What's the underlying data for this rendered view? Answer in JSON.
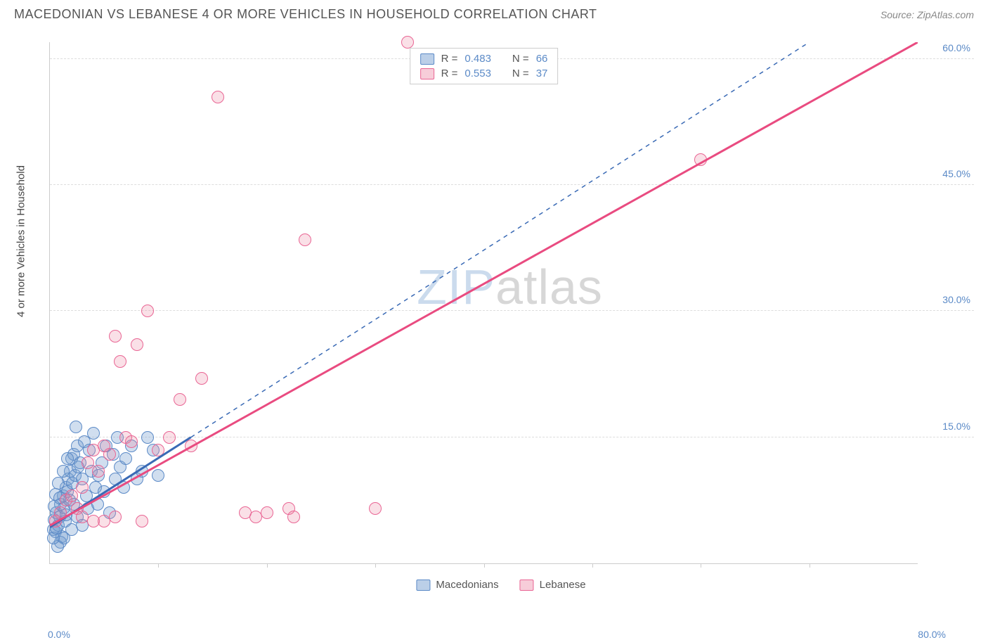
{
  "title": "MACEDONIAN VS LEBANESE 4 OR MORE VEHICLES IN HOUSEHOLD CORRELATION CHART",
  "source": "Source: ZipAtlas.com",
  "watermark": {
    "z": "ZIP",
    "rest": "atlas"
  },
  "chart": {
    "type": "scatter",
    "y_axis_title": "4 or more Vehicles in Household",
    "xlim": [
      0,
      80
    ],
    "ylim": [
      0,
      62
    ],
    "x_ticks": {
      "left_label": "0.0%",
      "left_pos": 0,
      "right_label": "80.0%",
      "right_pos": 80,
      "minor": [
        10,
        20,
        30,
        40,
        50,
        60,
        70
      ]
    },
    "y_ticks": [
      {
        "value": 15,
        "label": "15.0%"
      },
      {
        "value": 30,
        "label": "30.0%"
      },
      {
        "value": 45,
        "label": "45.0%"
      },
      {
        "value": 60,
        "label": "60.0%"
      }
    ],
    "grid_color": "#dddddd",
    "background_color": "#ffffff",
    "marker_radius": 9,
    "series": [
      {
        "name": "Macedonians",
        "color_fill": "rgba(120,160,210,0.35)",
        "color_stroke": "#5b8ac7",
        "R": "0.483",
        "N": "66",
        "trend": {
          "x1": 0,
          "y1": 4.3,
          "x2": 13,
          "y2": 15,
          "dash_ext_x2": 70,
          "dash_ext_y2": 62,
          "color": "#3a6ab5"
        },
        "points": [
          [
            0.3,
            4.0
          ],
          [
            0.4,
            5.2
          ],
          [
            0.5,
            3.8
          ],
          [
            0.6,
            6.0
          ],
          [
            0.8,
            4.5
          ],
          [
            0.9,
            5.5
          ],
          [
            1.0,
            7.0
          ],
          [
            1.1,
            3.2
          ],
          [
            1.2,
            8.0
          ],
          [
            1.3,
            6.6
          ],
          [
            1.4,
            5.0
          ],
          [
            1.5,
            9.0
          ],
          [
            1.6,
            8.5
          ],
          [
            1.7,
            10.0
          ],
          [
            1.8,
            7.5
          ],
          [
            1.9,
            11.0
          ],
          [
            2.0,
            12.5
          ],
          [
            2.1,
            9.5
          ],
          [
            2.2,
            13.0
          ],
          [
            2.3,
            10.5
          ],
          [
            2.4,
            16.2
          ],
          [
            2.5,
            14.0
          ],
          [
            2.6,
            11.5
          ],
          [
            2.8,
            12.0
          ],
          [
            3.0,
            10.0
          ],
          [
            3.2,
            14.5
          ],
          [
            3.4,
            8.0
          ],
          [
            3.5,
            6.5
          ],
          [
            3.6,
            13.5
          ],
          [
            3.8,
            11.0
          ],
          [
            4.0,
            15.5
          ],
          [
            4.2,
            9.0
          ],
          [
            4.4,
            7.0
          ],
          [
            4.5,
            10.5
          ],
          [
            4.8,
            12.0
          ],
          [
            5.0,
            8.5
          ],
          [
            5.2,
            14.0
          ],
          [
            5.5,
            6.0
          ],
          [
            5.8,
            13.0
          ],
          [
            6.0,
            10.0
          ],
          [
            6.2,
            15.0
          ],
          [
            6.5,
            11.5
          ],
          [
            6.8,
            9.0
          ],
          [
            7.0,
            12.5
          ],
          [
            7.5,
            14.0
          ],
          [
            8.0,
            10.0
          ],
          [
            8.5,
            11.0
          ],
          [
            9.0,
            15.0
          ],
          [
            9.5,
            13.5
          ],
          [
            10.0,
            10.5
          ],
          [
            1.0,
            2.5
          ],
          [
            1.3,
            3.0
          ],
          [
            0.7,
            2.0
          ],
          [
            2.0,
            4.0
          ],
          [
            2.5,
            5.5
          ],
          [
            3.0,
            4.5
          ],
          [
            0.5,
            8.2
          ],
          [
            0.8,
            9.5
          ],
          [
            1.2,
            11.0
          ],
          [
            1.6,
            12.5
          ],
          [
            0.4,
            6.8
          ],
          [
            0.9,
            7.8
          ],
          [
            1.5,
            5.8
          ],
          [
            2.2,
            7.0
          ],
          [
            0.3,
            3.0
          ],
          [
            0.6,
            4.2
          ]
        ]
      },
      {
        "name": "Lebanese",
        "color_fill": "rgba(235,130,160,0.25)",
        "color_stroke": "#e96594",
        "R": "0.553",
        "N": "37",
        "trend": {
          "x1": 0,
          "y1": 4.5,
          "x2": 80,
          "y2": 62,
          "color": "#e94b80"
        },
        "points": [
          [
            0.5,
            5.0
          ],
          [
            1.0,
            6.0
          ],
          [
            1.5,
            7.5
          ],
          [
            2.0,
            8.0
          ],
          [
            2.5,
            6.5
          ],
          [
            3.0,
            9.0
          ],
          [
            3.5,
            12.0
          ],
          [
            4.0,
            13.5
          ],
          [
            4.5,
            11.0
          ],
          [
            5.0,
            14.0
          ],
          [
            5.5,
            13.0
          ],
          [
            6.0,
            27.0
          ],
          [
            6.5,
            24.0
          ],
          [
            7.0,
            15.0
          ],
          [
            7.5,
            14.5
          ],
          [
            8.0,
            26.0
          ],
          [
            9.0,
            30.0
          ],
          [
            10.0,
            13.5
          ],
          [
            11.0,
            15.0
          ],
          [
            12.0,
            19.5
          ],
          [
            13.0,
            14.0
          ],
          [
            14.0,
            22.0
          ],
          [
            15.5,
            55.5
          ],
          [
            18.0,
            6.0
          ],
          [
            19.0,
            5.5
          ],
          [
            20.0,
            6.0
          ],
          [
            22.0,
            6.5
          ],
          [
            22.5,
            5.5
          ],
          [
            23.5,
            38.5
          ],
          [
            30.0,
            6.5
          ],
          [
            33.0,
            62.0
          ],
          [
            60.0,
            48.0
          ],
          [
            5.0,
            5.0
          ],
          [
            6.0,
            5.5
          ],
          [
            8.5,
            5.0
          ],
          [
            4.0,
            5.0
          ],
          [
            3.0,
            5.5
          ]
        ]
      }
    ],
    "legend_top": {
      "rows": [
        {
          "swatch": "blue",
          "r_label": "R =",
          "r_val": "0.483",
          "n_label": "N =",
          "n_val": "66"
        },
        {
          "swatch": "pink",
          "r_label": "R =",
          "r_val": "0.553",
          "n_label": "N =",
          "n_val": "37"
        }
      ]
    },
    "legend_bottom": [
      {
        "swatch": "blue",
        "label": "Macedonians"
      },
      {
        "swatch": "pink",
        "label": "Lebanese"
      }
    ]
  }
}
